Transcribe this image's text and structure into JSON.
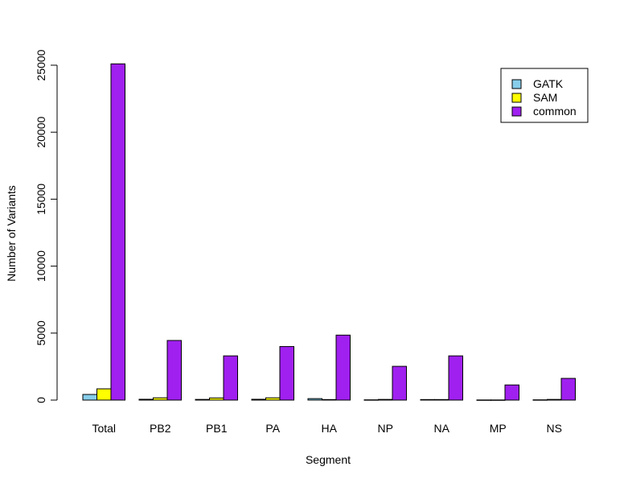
{
  "chart_data": {
    "type": "bar",
    "title": "",
    "xlabel": "Segment",
    "ylabel": "Number of Variants",
    "categories": [
      "Total",
      "PB2",
      "PB1",
      "PA",
      "HA",
      "NP",
      "NA",
      "MP",
      "NS"
    ],
    "series": [
      {
        "name": "GATK",
        "color": "#87CEEB",
        "values": [
          420,
          60,
          50,
          60,
          110,
          20,
          40,
          10,
          20
        ]
      },
      {
        "name": "SAM",
        "color": "#FFFF00",
        "values": [
          840,
          170,
          160,
          170,
          40,
          50,
          40,
          10,
          50
        ]
      },
      {
        "name": "common",
        "color": "#A020F0",
        "values": [
          25100,
          4450,
          3300,
          4000,
          4850,
          2520,
          3300,
          1130,
          1620
        ]
      }
    ],
    "yticks": [
      "0",
      "5000",
      "10000",
      "15000",
      "20000",
      "25000"
    ],
    "ylim": [
      0,
      25100
    ],
    "grid": false,
    "legend_position": "top-right"
  }
}
